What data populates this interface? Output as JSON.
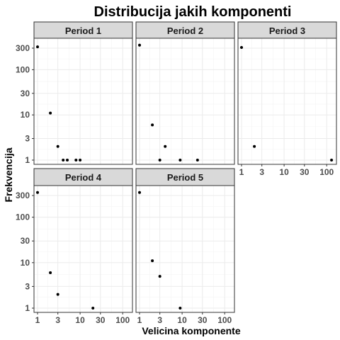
{
  "chart_data": {
    "type": "scatter",
    "title": "Distribucija jakih komponenti",
    "xlabel": "Velicina komponente",
    "ylabel": "Frekvencija",
    "x_scale": "log10",
    "y_scale": "log10",
    "xlim": [
      1,
      140
    ],
    "ylim": [
      1,
      400
    ],
    "x_ticks": [
      1,
      3,
      10,
      30,
      100
    ],
    "y_ticks": [
      1,
      3,
      10,
      30,
      100,
      300
    ],
    "grid": true,
    "facets": [
      {
        "label": "Period 1",
        "points": [
          {
            "x": 1,
            "y": 320
          },
          {
            "x": 2,
            "y": 11
          },
          {
            "x": 3,
            "y": 2
          },
          {
            "x": 4,
            "y": 1
          },
          {
            "x": 5,
            "y": 1
          },
          {
            "x": 8,
            "y": 1
          },
          {
            "x": 10,
            "y": 1
          }
        ]
      },
      {
        "label": "Period 2",
        "points": [
          {
            "x": 1,
            "y": 350
          },
          {
            "x": 2,
            "y": 6
          },
          {
            "x": 3,
            "y": 1
          },
          {
            "x": 4,
            "y": 2
          },
          {
            "x": 9,
            "y": 1
          },
          {
            "x": 23,
            "y": 1
          }
        ]
      },
      {
        "label": "Period 3",
        "points": [
          {
            "x": 1,
            "y": 310
          },
          {
            "x": 2,
            "y": 2
          },
          {
            "x": 130,
            "y": 1
          }
        ]
      },
      {
        "label": "Period 4",
        "points": [
          {
            "x": 1,
            "y": 350
          },
          {
            "x": 2,
            "y": 6
          },
          {
            "x": 3,
            "y": 2
          },
          {
            "x": 20,
            "y": 1
          }
        ]
      },
      {
        "label": "Period 5",
        "points": [
          {
            "x": 1,
            "y": 350
          },
          {
            "x": 2,
            "y": 11
          },
          {
            "x": 3,
            "y": 5
          },
          {
            "x": 9,
            "y": 1
          }
        ]
      }
    ]
  }
}
